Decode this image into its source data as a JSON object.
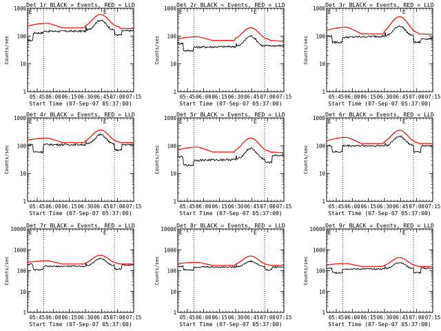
{
  "figure": {
    "colors": {
      "events": "#000000",
      "lld": "#ff0000",
      "axis": "#000000",
      "background": "#ffffff"
    }
  },
  "chart_data": [
    {
      "type": "line",
      "detector": "1r",
      "title": "Det 1r BLACK = Events, RED = LLD",
      "xlabel": "Start Time (07-Sep-07 05:37:00)",
      "ylabel": "Counts/sec",
      "x_ticks": [
        "05:45",
        "06:00",
        "06:15",
        "06:30",
        "06:45",
        "07:00",
        "07:15"
      ],
      "y_ticks": [
        "1",
        "10",
        "100",
        "1000"
      ],
      "ylim": [
        1,
        1000
      ],
      "series": [
        {
          "name": "Events",
          "color": "#000000",
          "levels": [
            70,
            130,
            150,
            150,
            160,
            370,
            110,
            155
          ]
        },
        {
          "name": "LLD",
          "color": "#ff0000",
          "levels": [
            230,
            290,
            200,
            200,
            210,
            600,
            190,
            185
          ]
        }
      ],
      "marker": "E"
    },
    {
      "type": "line",
      "detector": "2r",
      "title": "Det 2r BLACK = Events, RED = LLD",
      "xlabel": "Start Time (07-Sep-07 05:37:00)",
      "ylabel": "Counts/sec",
      "x_ticks": [
        "05:45",
        "06:00",
        "06:15",
        "06:30",
        "06:45",
        "07:00",
        "07:15"
      ],
      "y_ticks": [
        "1",
        "10",
        "100",
        "1000"
      ],
      "ylim": [
        1,
        1000
      ],
      "series": [
        {
          "name": "Events",
          "color": "#000000",
          "levels": [
            55,
            30,
            40,
            42,
            42,
            100,
            45,
            45
          ]
        },
        {
          "name": "LLD",
          "color": "#ff0000",
          "levels": [
            80,
            95,
            70,
            70,
            75,
            200,
            70,
            65
          ]
        }
      ],
      "marker": "E"
    },
    {
      "type": "line",
      "detector": "3r",
      "title": "Det 3r BLACK = Events, RED = LLD",
      "xlabel": "Start Time (07-Sep-07 05:37:00)",
      "ylabel": "Counts/sec",
      "x_ticks": [
        "05:45",
        "06:00",
        "06:15",
        "06:30",
        "06:45",
        "07:00",
        "07:15"
      ],
      "y_ticks": [
        "1",
        "10",
        "100",
        "1000"
      ],
      "ylim": [
        1,
        1000
      ],
      "series": [
        {
          "name": "Events",
          "color": "#000000",
          "levels": [
            100,
            60,
            90,
            100,
            100,
            230,
            60,
            80
          ]
        },
        {
          "name": "LLD",
          "color": "#ff0000",
          "levels": [
            160,
            210,
            120,
            120,
            125,
            500,
            120,
            115
          ]
        }
      ],
      "marker": "E"
    },
    {
      "type": "line",
      "detector": "4r",
      "title": "Det 4r BLACK = Events, RED = LLD",
      "xlabel": "Start Time (07-Sep-07 05:37:00)",
      "ylabel": "Counts/sec",
      "x_ticks": [
        "05:45",
        "06:00",
        "06:15",
        "06:30",
        "06:45",
        "07:00",
        "07:15"
      ],
      "y_ticks": [
        "1",
        "10",
        "100",
        "1000"
      ],
      "ylim": [
        1,
        1000
      ],
      "series": [
        {
          "name": "Events",
          "color": "#000000",
          "levels": [
            110,
            60,
            110,
            110,
            110,
            250,
            70,
            110
          ]
        },
        {
          "name": "LLD",
          "color": "#ff0000",
          "levels": [
            160,
            190,
            130,
            130,
            135,
            370,
            130,
            130
          ]
        }
      ],
      "marker": "E"
    },
    {
      "type": "line",
      "detector": "5r",
      "title": "Det 5r BLACK = Events, RED = LLD",
      "xlabel": "Start Time (07-Sep-07 05:37:00)",
      "ylabel": "Counts/sec",
      "x_ticks": [
        "05:45",
        "06:00",
        "06:15",
        "06:30",
        "06:45",
        "07:00",
        "07:15"
      ],
      "y_ticks": [
        "1",
        "10",
        "100",
        "1000"
      ],
      "ylim": [
        1,
        1000
      ],
      "series": [
        {
          "name": "Events",
          "color": "#000000",
          "levels": [
            40,
            20,
            30,
            32,
            32,
            80,
            25,
            45
          ]
        },
        {
          "name": "LLD",
          "color": "#ff0000",
          "levels": [
            70,
            90,
            60,
            60,
            62,
            190,
            60,
            55
          ]
        }
      ],
      "marker": "E"
    },
    {
      "type": "line",
      "detector": "6r",
      "title": "Det 6r BLACK = Events, RED = LLD",
      "xlabel": "Start Time (07-Sep-07 05:37:00)",
      "ylabel": "Counts/sec",
      "x_ticks": [
        "05:45",
        "06:00",
        "06:15",
        "06:30",
        "06:45",
        "07:00",
        "07:15"
      ],
      "y_ticks": [
        "1",
        "10",
        "100",
        "1000"
      ],
      "ylim": [
        1,
        1000
      ],
      "series": [
        {
          "name": "Events",
          "color": "#000000",
          "levels": [
            100,
            60,
            100,
            100,
            100,
            220,
            60,
            100
          ]
        },
        {
          "name": "LLD",
          "color": "#ff0000",
          "levels": [
            150,
            200,
            120,
            120,
            125,
            360,
            120,
            120
          ]
        }
      ],
      "marker": "E"
    },
    {
      "type": "line",
      "detector": "7r",
      "title": "Det 7r BLACK = Events, RED = LLD",
      "xlabel": "Start Time (07-Sep-07 05:37:00)",
      "ylabel": "Counts/sec",
      "x_ticks": [
        "05:45",
        "06:00",
        "06:15",
        "06:30",
        "06:45",
        "07:00",
        "07:15"
      ],
      "y_ticks": [
        "1",
        "10",
        "100",
        "1000",
        "10000"
      ],
      "ylim": [
        1,
        10000
      ],
      "series": [
        {
          "name": "Events",
          "color": "#000000",
          "levels": [
            200,
            110,
            160,
            165,
            170,
            380,
            120,
            190
          ]
        },
        {
          "name": "LLD",
          "color": "#ff0000",
          "levels": [
            250,
            300,
            210,
            210,
            215,
            550,
            210,
            210
          ]
        }
      ],
      "marker": "E"
    },
    {
      "type": "line",
      "detector": "8r",
      "title": "Det 8r BLACK = Events, RED = LLD",
      "xlabel": "Start Time (07-Sep-07 05:37:00)",
      "ylabel": "Counts/sec",
      "x_ticks": [
        "05:45",
        "06:00",
        "06:15",
        "06:30",
        "06:45",
        "07:00",
        "07:15"
      ],
      "y_ticks": [
        "1",
        "10",
        "100",
        "1000",
        "10000"
      ],
      "ylim": [
        1,
        10000
      ],
      "series": [
        {
          "name": "Events",
          "color": "#000000",
          "levels": [
            160,
            110,
            150,
            150,
            155,
            280,
            110,
            150
          ]
        },
        {
          "name": "LLD",
          "color": "#ff0000",
          "levels": [
            220,
            250,
            180,
            180,
            185,
            500,
            180,
            175
          ]
        }
      ],
      "marker": "E"
    },
    {
      "type": "line",
      "detector": "9r",
      "title": "Det 9r BLACK = Events, RED = LLD",
      "xlabel": "Start Time (07-Sep-07 05:37:00)",
      "ylabel": "Counts/sec",
      "x_ticks": [
        "05:45",
        "06:00",
        "06:15",
        "06:30",
        "06:45",
        "07:00",
        "07:15"
      ],
      "y_ticks": [
        "1",
        "10",
        "100",
        "1000",
        "10000"
      ],
      "ylim": [
        1,
        10000
      ],
      "series": [
        {
          "name": "Events",
          "color": "#000000",
          "levels": [
            130,
            80,
            120,
            120,
            125,
            250,
            80,
            130
          ]
        },
        {
          "name": "LLD",
          "color": "#ff0000",
          "levels": [
            190,
            220,
            160,
            160,
            165,
            420,
            160,
            155
          ]
        }
      ],
      "marker": "E"
    }
  ]
}
